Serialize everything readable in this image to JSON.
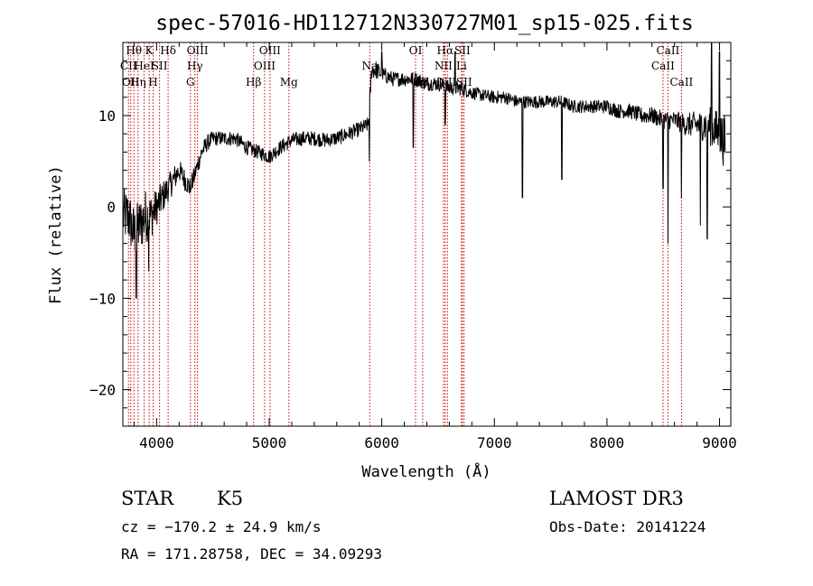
{
  "chart_data": {
    "type": "line",
    "title": "spec-57016-HD112712N330727M01_sp15-025.fits",
    "xlabel": "Wavelength (Å)",
    "ylabel": "Flux (relative)",
    "xlim": [
      3700,
      9100
    ],
    "ylim": [
      -24,
      18
    ],
    "x_ticks": [
      4000,
      5000,
      6000,
      7000,
      8000,
      9000
    ],
    "y_ticks": [
      -20,
      -10,
      0,
      10
    ],
    "grid": false,
    "line_color": "#000000",
    "marker_color": "#cc0000",
    "spectrum_knots": {
      "x": [
        3700,
        3750,
        3800,
        3850,
        3900,
        3950,
        4000,
        4050,
        4100,
        4150,
        4200,
        4250,
        4300,
        4350,
        4400,
        4450,
        4500,
        4600,
        4700,
        4800,
        4900,
        5000,
        5100,
        5200,
        5300,
        5400,
        5500,
        5600,
        5700,
        5800,
        5880,
        5910,
        5950,
        6000,
        6100,
        6200,
        6300,
        6400,
        6500,
        6600,
        6700,
        6800,
        6900,
        7000,
        7100,
        7200,
        7300,
        7400,
        7500,
        7600,
        7700,
        7800,
        7900,
        8000,
        8100,
        8200,
        8300,
        8400,
        8500,
        8600,
        8700,
        8800,
        8900,
        9000,
        9050
      ],
      "y": [
        -1,
        -1,
        -3,
        -2,
        -1,
        -1,
        0,
        1,
        2,
        3,
        4,
        3,
        2,
        4,
        6,
        7,
        7.5,
        7.5,
        7.5,
        6.5,
        6,
        5.5,
        6.5,
        7.3,
        7.5,
        7.5,
        7.3,
        7.5,
        8,
        8.5,
        9,
        15,
        15,
        14.5,
        14,
        14,
        14,
        13.5,
        13.5,
        13,
        13,
        12.5,
        12.2,
        12,
        12,
        11.5,
        11.5,
        11.5,
        11.5,
        11.5,
        11,
        11,
        11,
        11,
        10.5,
        10.5,
        10,
        10,
        9.5,
        9.5,
        9,
        9,
        9,
        8,
        7
      ],
      "noise_amplitude": [
        3,
        3,
        3,
        3,
        3,
        2.5,
        2,
        1.8,
        1.5,
        1.5,
        1.2,
        1.2,
        1.2,
        1,
        1,
        0.9,
        0.8,
        0.8,
        0.8,
        0.8,
        0.8,
        0.8,
        0.8,
        0.8,
        0.8,
        0.8,
        0.8,
        0.8,
        0.8,
        0.8,
        0.8,
        1,
        1,
        0.9,
        0.8,
        0.8,
        0.8,
        0.8,
        0.8,
        0.8,
        0.8,
        0.7,
        0.7,
        0.7,
        0.7,
        0.7,
        0.7,
        0.7,
        0.7,
        0.7,
        0.7,
        0.7,
        0.7,
        0.8,
        0.8,
        0.8,
        0.9,
        0.9,
        1,
        1,
        1.2,
        1.5,
        2,
        2.5,
        3
      ]
    },
    "absorption_dips": [
      {
        "x": 3820,
        "y": -10
      },
      {
        "x": 3930,
        "y": -7
      },
      {
        "x": 4305,
        "y": 2
      },
      {
        "x": 5890,
        "y": 5
      },
      {
        "x": 6280,
        "y": 6.5
      },
      {
        "x": 6563,
        "y": 9
      },
      {
        "x": 7250,
        "y": 1
      },
      {
        "x": 7600,
        "y": 3
      },
      {
        "x": 8498,
        "y": 2
      },
      {
        "x": 8542,
        "y": -4
      },
      {
        "x": 8662,
        "y": 1
      },
      {
        "x": 8830,
        "y": -2
      },
      {
        "x": 8890,
        "y": -3.5
      }
    ],
    "emission_spikes": [
      {
        "x": 6000,
        "y": 17
      },
      {
        "x": 6650,
        "y": 17
      },
      {
        "x": 8930,
        "y": 18
      },
      {
        "x": 9000,
        "y": 17
      }
    ],
    "line_markers": [
      {
        "x": 3750,
        "row": 1,
        "label": "CII"
      },
      {
        "x": 3770,
        "row": 2,
        "label": "OII"
      },
      {
        "x": 3798,
        "row": 0,
        "label": "Hθ"
      },
      {
        "x": 3835,
        "row": 2,
        "label": "Hη"
      },
      {
        "x": 3889,
        "row": 1,
        "label": "HeI"
      },
      {
        "x": 3934,
        "row": 0,
        "label": "K"
      },
      {
        "x": 3969,
        "row": 2,
        "label": "H"
      },
      {
        "x": 4026,
        "row": 1,
        "label": "SII"
      },
      {
        "x": 4102,
        "row": 0,
        "label": "Hδ"
      },
      {
        "x": 4300,
        "row": 2,
        "label": "G"
      },
      {
        "x": 4340,
        "row": 1,
        "label": "Hγ"
      },
      {
        "x": 4363,
        "row": 0,
        "label": "OIII"
      },
      {
        "x": 4861,
        "row": 2,
        "label": "Hβ"
      },
      {
        "x": 4959,
        "row": 1,
        "label": "OIII"
      },
      {
        "x": 5007,
        "row": 0,
        "label": "OIII"
      },
      {
        "x": 5175,
        "row": 2,
        "label": "Mg"
      },
      {
        "x": 5893,
        "row": 1,
        "label": "Na"
      },
      {
        "x": 6300,
        "row": 0,
        "label": "OI"
      },
      {
        "x": 6363,
        "row": 2,
        "label": "OI"
      },
      {
        "x": 6548,
        "row": 1,
        "label": "NII"
      },
      {
        "x": 6563,
        "row": 0,
        "label": "Hα"
      },
      {
        "x": 6583,
        "row": 2,
        "label": "NII"
      },
      {
        "x": 6708,
        "row": 1,
        "label": "Li"
      },
      {
        "x": 6716,
        "row": 0,
        "label": "SII"
      },
      {
        "x": 6731,
        "row": 2,
        "label": "SII"
      },
      {
        "x": 8498,
        "row": 1,
        "label": "CaII"
      },
      {
        "x": 8542,
        "row": 0,
        "label": "CaII"
      },
      {
        "x": 8662,
        "row": 2,
        "label": "CaII"
      }
    ]
  },
  "info": {
    "object_class": "STAR",
    "subclass": "K5",
    "redshift": "cz = −170.2 ± 24.9 km/s",
    "coords": "RA = 171.28758, DEC =  34.09293",
    "survey": "LAMOST DR3",
    "obs_date": "Obs-Date: 20141224"
  }
}
